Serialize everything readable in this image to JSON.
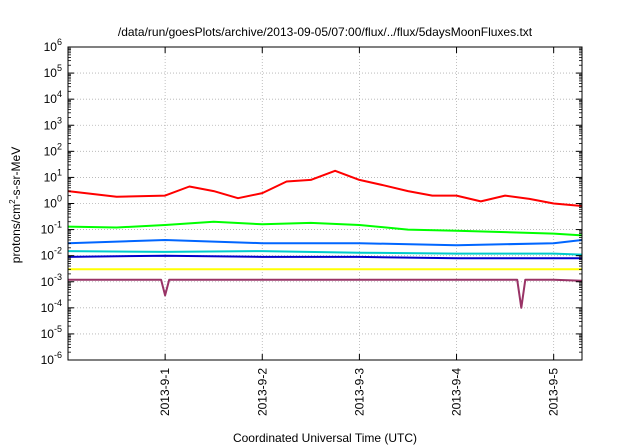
{
  "chart_data": {
    "type": "line",
    "title": "/data/run/goesPlots/archive/2013-09-05/07:00/flux/../flux/5daysMoonFluxes.txt",
    "xlabel": "Coordinated Universal Time (UTC)",
    "ylabel": {
      "base": "protons/cm",
      "sup": "2",
      "rest": "-s-sr-MeV"
    },
    "yscale": "log",
    "ylim": [
      "1e-6",
      "1e6"
    ],
    "y_ticks": [
      {
        "value": "1e-6",
        "base": "10",
        "exp": "-6"
      },
      {
        "value": "1e-5",
        "base": "10",
        "exp": "-5"
      },
      {
        "value": "1e-4",
        "base": "10",
        "exp": "-4"
      },
      {
        "value": "1e-3",
        "base": "10",
        "exp": "-3"
      },
      {
        "value": "1e-2",
        "base": "10",
        "exp": "-2"
      },
      {
        "value": "1e-1",
        "base": "10",
        "exp": "-1"
      },
      {
        "value": "1e0",
        "base": "10",
        "exp": "0"
      },
      {
        "value": "1e1",
        "base": "10",
        "exp": "1"
      },
      {
        "value": "1e2",
        "base": "10",
        "exp": "2"
      },
      {
        "value": "1e3",
        "base": "10",
        "exp": "3"
      },
      {
        "value": "1e4",
        "base": "10",
        "exp": "4"
      },
      {
        "value": "1e5",
        "base": "10",
        "exp": "5"
      },
      {
        "value": "1e6",
        "base": "10",
        "exp": "6"
      }
    ],
    "x_ticks": [
      "2013-9-1",
      "2013-9-2",
      "2013-9-3",
      "2013-9-4",
      "2013-9-5"
    ],
    "xlim": [
      "2013-08-31 00:00",
      "2013-09-05 07:00"
    ],
    "grid": true,
    "series": [
      {
        "color": "#ff0000",
        "x": [
          "2013-08-31 00:00",
          "2013-08-31 12:00",
          "2013-09-01 00:00",
          "2013-09-01 06:00",
          "2013-09-01 12:00",
          "2013-09-01 18:00",
          "2013-09-02 00:00",
          "2013-09-02 06:00",
          "2013-09-02 12:00",
          "2013-09-02 18:00",
          "2013-09-03 00:00",
          "2013-09-03 06:00",
          "2013-09-03 12:00",
          "2013-09-03 18:00",
          "2013-09-04 00:00",
          "2013-09-04 06:00",
          "2013-09-04 12:00",
          "2013-09-04 18:00",
          "2013-09-05 00:00",
          "2013-09-05 07:00"
        ],
        "y": [
          3.0,
          1.8,
          2.0,
          4.5,
          3.0,
          1.6,
          2.5,
          7.0,
          8.0,
          18.0,
          8.0,
          5.0,
          3.0,
          2.0,
          2.0,
          1.2,
          2.0,
          1.5,
          1.0,
          0.8
        ]
      },
      {
        "color": "#00ff00",
        "x": [
          "2013-08-31 00:00",
          "2013-08-31 12:00",
          "2013-09-01 00:00",
          "2013-09-01 12:00",
          "2013-09-02 00:00",
          "2013-09-02 12:00",
          "2013-09-03 00:00",
          "2013-09-03 12:00",
          "2013-09-04 00:00",
          "2013-09-04 12:00",
          "2013-09-05 00:00",
          "2013-09-05 07:00"
        ],
        "y": [
          0.13,
          0.12,
          0.15,
          0.2,
          0.16,
          0.18,
          0.15,
          0.1,
          0.09,
          0.08,
          0.07,
          0.06
        ]
      },
      {
        "color": "#0066ff",
        "x": [
          "2013-08-31 00:00",
          "2013-09-01 00:00",
          "2013-09-02 00:00",
          "2013-09-03 00:00",
          "2013-09-04 00:00",
          "2013-09-05 00:00",
          "2013-09-05 07:00"
        ],
        "y": [
          0.03,
          0.04,
          0.03,
          0.03,
          0.025,
          0.03,
          0.04
        ]
      },
      {
        "color": "#00cccc",
        "x": [
          "2013-08-31 00:00",
          "2013-09-01 00:00",
          "2013-09-02 00:00",
          "2013-09-03 00:00",
          "2013-09-04 00:00",
          "2013-09-05 00:00",
          "2013-09-05 07:00"
        ],
        "y": [
          0.015,
          0.014,
          0.015,
          0.013,
          0.012,
          0.012,
          0.011
        ]
      },
      {
        "color": "#0000cc",
        "x": [
          "2013-08-31 00:00",
          "2013-09-01 00:00",
          "2013-09-02 00:00",
          "2013-09-03 00:00",
          "2013-09-04 00:00",
          "2013-09-05 00:00",
          "2013-09-05 07:00"
        ],
        "y": [
          0.009,
          0.01,
          0.009,
          0.009,
          0.008,
          0.008,
          0.008
        ]
      },
      {
        "color": "#ffff00",
        "x": [
          "2013-08-31 00:00",
          "2013-09-01 00:00",
          "2013-09-02 00:00",
          "2013-09-03 00:00",
          "2013-09-04 00:00",
          "2013-09-05 00:00",
          "2013-09-05 07:00"
        ],
        "y": [
          0.003,
          0.003,
          0.003,
          0.003,
          0.003,
          0.003,
          0.003
        ]
      },
      {
        "color": "#993366",
        "x": [
          "2013-08-31 00:00",
          "2013-08-31 23:00",
          "2013-09-01 00:00",
          "2013-09-01 01:00",
          "2013-09-02 00:00",
          "2013-09-03 00:00",
          "2013-09-04 00:00",
          "2013-09-04 15:00",
          "2013-09-04 16:00",
          "2013-09-04 17:00",
          "2013-09-05 00:00",
          "2013-09-05 07:00"
        ],
        "y": [
          0.0012,
          0.0012,
          0.0003,
          0.0012,
          0.0012,
          0.0012,
          0.0012,
          0.0012,
          0.0001,
          0.0012,
          0.0012,
          0.0011
        ]
      }
    ]
  }
}
